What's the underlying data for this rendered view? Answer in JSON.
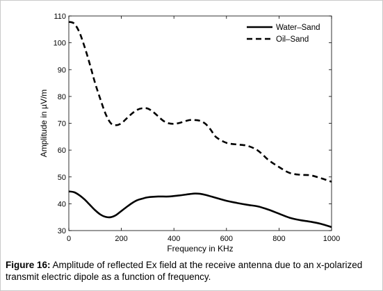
{
  "chart_data": {
    "type": "line",
    "xlabel": "Frequency in KHz",
    "ylabel": "Amplitude in µV/m",
    "xlim": [
      0,
      1000
    ],
    "ylim": [
      30,
      110
    ],
    "xticks": [
      0,
      200,
      400,
      600,
      800,
      1000
    ],
    "yticks": [
      30,
      40,
      50,
      60,
      70,
      80,
      90,
      100,
      110
    ],
    "grid": false,
    "legend_position": "top-right",
    "series": [
      {
        "name": "Water–Sand",
        "style": "solid",
        "color": "#000000",
        "x": [
          0,
          20,
          40,
          60,
          80,
          100,
          120,
          140,
          160,
          180,
          200,
          220,
          240,
          260,
          280,
          300,
          340,
          380,
          420,
          460,
          480,
          500,
          520,
          560,
          600,
          640,
          680,
          720,
          760,
          800,
          840,
          880,
          920,
          960,
          1000
        ],
        "y": [
          44.6,
          44.3,
          43.2,
          41.6,
          39.6,
          37.6,
          36.0,
          35.1,
          35.0,
          35.8,
          37.3,
          38.8,
          40.2,
          41.3,
          41.9,
          42.4,
          42.7,
          42.7,
          43.1,
          43.6,
          43.8,
          43.7,
          43.3,
          42.2,
          41.1,
          40.3,
          39.6,
          39.0,
          37.8,
          36.3,
          34.8,
          33.9,
          33.3,
          32.5,
          31.3
        ]
      },
      {
        "name": "Oil–Sand",
        "style": "dashed",
        "color": "#000000",
        "x": [
          0,
          20,
          40,
          60,
          80,
          100,
          120,
          140,
          160,
          180,
          200,
          220,
          240,
          260,
          280,
          300,
          320,
          340,
          360,
          380,
          400,
          420,
          440,
          460,
          480,
          500,
          520,
          540,
          560,
          600,
          640,
          680,
          720,
          760,
          800,
          840,
          880,
          920,
          960,
          1000
        ],
        "y": [
          107.8,
          107.2,
          104.0,
          98.5,
          92.0,
          85.0,
          79.0,
          73.5,
          70.0,
          69.3,
          70.0,
          71.8,
          73.6,
          75.0,
          75.6,
          75.5,
          74.3,
          72.6,
          70.9,
          70.0,
          69.8,
          70.1,
          70.7,
          71.2,
          71.2,
          70.9,
          69.8,
          67.6,
          64.9,
          62.7,
          62.1,
          61.6,
          59.8,
          56.3,
          53.7,
          51.5,
          50.8,
          50.6,
          49.5,
          48.2
        ]
      }
    ]
  },
  "caption": {
    "label": "Figure 16:",
    "text": "Amplitude of reflected Ex field at the receive antenna due to an x-polarized transmit electric dipole as a function of frequency."
  }
}
